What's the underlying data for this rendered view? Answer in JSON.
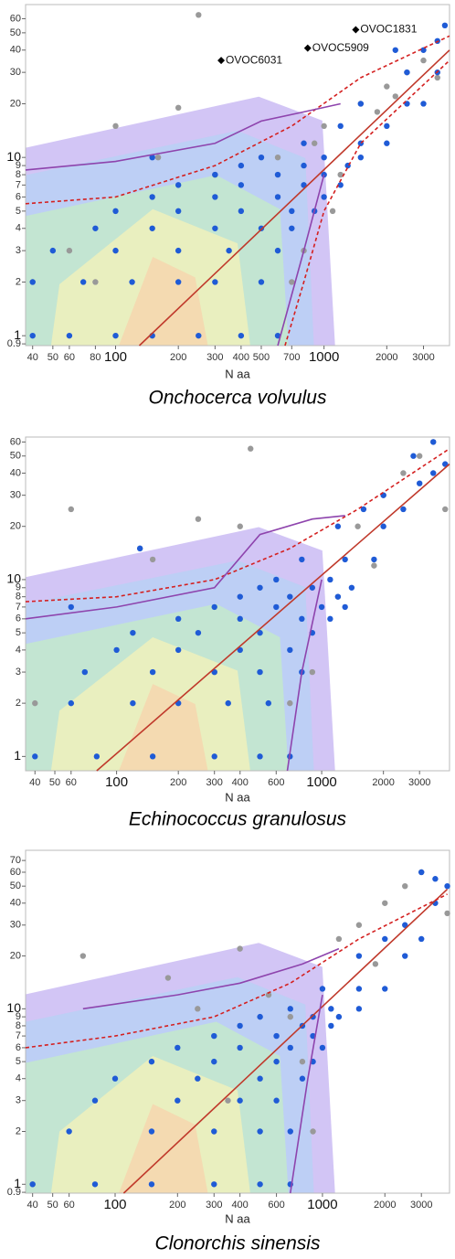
{
  "chart_data": [
    {
      "type": "scatter",
      "title": "Onchocerca volvulus",
      "x_label": "N aa",
      "log_x": true,
      "log_y": true,
      "xlim": [
        37,
        4000
      ],
      "ylim": [
        0.88,
        72
      ],
      "xticks": [
        40,
        50,
        60,
        80,
        100,
        200,
        300,
        400,
        500,
        700,
        1000,
        2000,
        3000
      ],
      "yticks": [
        0.9,
        1,
        2,
        3,
        4,
        5,
        6,
        7,
        8,
        9,
        10,
        20,
        30,
        40,
        50,
        60
      ],
      "series": [
        {
          "kind": "points",
          "color": "#999999",
          "x": [
            250,
            200,
            100,
            60,
            40,
            80,
            700,
            800,
            1100,
            1200,
            1500,
            2000,
            2500,
            3000,
            900,
            1000,
            600,
            1800,
            2200,
            3500,
            160,
            300
          ],
          "y": [
            63,
            19,
            15,
            3,
            2,
            2,
            2,
            3,
            5,
            8,
            20,
            25,
            30,
            35,
            12,
            15,
            10,
            18,
            22,
            28,
            10,
            8
          ]
        },
        {
          "kind": "points",
          "color": "#1f5bd6",
          "x": [
            40,
            60,
            100,
            150,
            250,
            400,
            600,
            40,
            70,
            120,
            200,
            300,
            500,
            50,
            100,
            200,
            350,
            600,
            80,
            150,
            300,
            500,
            700,
            100,
            200,
            400,
            700,
            900,
            150,
            300,
            600,
            1000,
            200,
            400,
            800,
            1200,
            300,
            600,
            1000,
            400,
            800,
            1300,
            500,
            1000,
            1500,
            800,
            1500,
            2000,
            1200,
            2000,
            1500,
            2500,
            3000,
            2500,
            3500,
            3000,
            3800,
            150,
            2200,
            3500
          ],
          "y": [
            1,
            1,
            1,
            1,
            1,
            1,
            1,
            2,
            2,
            2,
            2,
            2,
            2,
            3,
            3,
            3,
            3,
            3,
            4,
            4,
            4,
            4,
            4,
            5,
            5,
            5,
            5,
            5,
            6,
            6,
            6,
            6,
            7,
            7,
            7,
            7,
            8,
            8,
            8,
            9,
            9,
            9,
            10,
            10,
            10,
            12,
            12,
            12,
            15,
            15,
            20,
            20,
            20,
            30,
            30,
            40,
            55,
            10,
            40,
            45
          ]
        },
        {
          "kind": "line",
          "color": "#c0392b",
          "x": [
            130,
            4000
          ],
          "y": [
            0.88,
            40
          ]
        },
        {
          "kind": "dashed",
          "color": "#d42020",
          "x": [
            37,
            100,
            300,
            700,
            1500,
            4000
          ],
          "y": [
            5.5,
            6,
            9,
            15,
            28,
            48
          ]
        },
        {
          "kind": "dashed",
          "color": "#d42020",
          "x": [
            650,
            800,
            1000,
            1500,
            4000
          ],
          "y": [
            0.88,
            2,
            5,
            12,
            35
          ]
        },
        {
          "kind": "line",
          "color": "#8e44ad",
          "x": [
            37,
            100,
            300,
            500,
            800,
            1200
          ],
          "y": [
            8.5,
            9.5,
            12,
            16,
            18,
            20
          ]
        },
        {
          "kind": "line",
          "color": "#8e44ad",
          "x": [
            600,
            800,
            1000
          ],
          "y": [
            0.88,
            3,
            8
          ]
        }
      ],
      "annotations": [
        {
          "text": "OVOC6031",
          "x": 321,
          "y": 35
        },
        {
          "text": "OVOC5909",
          "x": 835,
          "y": 41
        },
        {
          "text": "OVOC1831",
          "x": 1420,
          "y": 52
        }
      ]
    },
    {
      "type": "scatter",
      "title": "Echinococcus granulosus",
      "x_label": "N aa",
      "log_x": true,
      "log_y": true,
      "xlim": [
        36,
        4200
      ],
      "ylim": [
        0.83,
        64
      ],
      "xticks": [
        40,
        50,
        60,
        100,
        200,
        300,
        400,
        600,
        1000,
        2000,
        3000
      ],
      "yticks": [
        1,
        2,
        3,
        4,
        5,
        6,
        7,
        8,
        9,
        10,
        20,
        30,
        40,
        50,
        60
      ],
      "series": [
        {
          "kind": "points",
          "color": "#999999",
          "x": [
            60,
            130,
            150,
            250,
            450,
            400,
            900,
            1500,
            2000,
            2500,
            3000,
            3500,
            1200,
            700,
            40,
            300,
            1800,
            4000
          ],
          "y": [
            25,
            15,
            13,
            22,
            55,
            20,
            3,
            20,
            30,
            40,
            50,
            60,
            8,
            2,
            2,
            3,
            12,
            25
          ]
        },
        {
          "kind": "points",
          "color": "#1f5bd6",
          "x": [
            40,
            80,
            150,
            300,
            500,
            700,
            60,
            120,
            200,
            350,
            550,
            70,
            150,
            300,
            500,
            800,
            100,
            200,
            400,
            700,
            120,
            250,
            500,
            900,
            200,
            400,
            800,
            1100,
            300,
            600,
            1000,
            1300,
            400,
            700,
            1200,
            500,
            900,
            1400,
            600,
            1100,
            800,
            1300,
            1800,
            1200,
            2000,
            1600,
            2500,
            2000,
            3000,
            3500,
            2800,
            4000,
            3500,
            130,
            60
          ],
          "y": [
            1,
            1,
            1,
            1,
            1,
            1,
            2,
            2,
            2,
            2,
            2,
            3,
            3,
            3,
            3,
            3,
            4,
            4,
            4,
            4,
            5,
            5,
            5,
            5,
            6,
            6,
            6,
            6,
            7,
            7,
            7,
            7,
            8,
            8,
            8,
            9,
            9,
            9,
            10,
            10,
            13,
            13,
            13,
            20,
            20,
            25,
            25,
            30,
            35,
            40,
            50,
            45,
            60,
            15,
            7
          ]
        },
        {
          "kind": "line",
          "color": "#c0392b",
          "x": [
            80,
            4200
          ],
          "y": [
            0.83,
            45
          ]
        },
        {
          "kind": "dashed",
          "color": "#d42020",
          "x": [
            36,
            100,
            300,
            700,
            1500,
            4200
          ],
          "y": [
            7.5,
            8,
            10,
            15,
            25,
            55
          ]
        },
        {
          "kind": "line",
          "color": "#8e44ad",
          "x": [
            36,
            100,
            300,
            500,
            900,
            1300
          ],
          "y": [
            6,
            7,
            9,
            18,
            22,
            23
          ]
        },
        {
          "kind": "line",
          "color": "#8e44ad",
          "x": [
            680,
            800,
            1000
          ],
          "y": [
            0.83,
            3,
            10
          ]
        }
      ]
    },
    {
      "type": "scatter",
      "title": "Clonorchis sinensis",
      "x_label": "N aa",
      "log_x": true,
      "log_y": true,
      "xlim": [
        37,
        4100
      ],
      "ylim": [
        0.89,
        80
      ],
      "xticks": [
        40,
        50,
        60,
        100,
        200,
        300,
        400,
        600,
        1000,
        2000,
        3000
      ],
      "yticks": [
        0.9,
        1,
        2,
        3,
        4,
        5,
        6,
        7,
        8,
        9,
        10,
        20,
        30,
        40,
        50,
        60,
        70
      ],
      "series": [
        {
          "kind": "points",
          "color": "#999999",
          "x": [
            70,
            180,
            400,
            250,
            550,
            700,
            800,
            1500,
            2000,
            2500,
            3000,
            4000,
            1200,
            40,
            1800,
            900,
            350
          ],
          "y": [
            20,
            15,
            22,
            10,
            12,
            9,
            5,
            30,
            40,
            50,
            60,
            35,
            25,
            1,
            18,
            2,
            3
          ]
        },
        {
          "kind": "points",
          "color": "#1f5bd6",
          "x": [
            40,
            80,
            150,
            300,
            500,
            700,
            60,
            150,
            300,
            500,
            700,
            80,
            200,
            400,
            600,
            100,
            250,
            500,
            800,
            150,
            300,
            600,
            900,
            200,
            400,
            700,
            1000,
            300,
            600,
            900,
            400,
            800,
            1100,
            500,
            900,
            1200,
            700,
            1100,
            1500,
            1000,
            1500,
            2000,
            1500,
            2500,
            2000,
            3000,
            2500,
            3500,
            4000,
            3000,
            3500
          ],
          "y": [
            1,
            1,
            1,
            1,
            1,
            1,
            2,
            2,
            2,
            2,
            2,
            3,
            3,
            3,
            3,
            4,
            4,
            4,
            4,
            5,
            5,
            5,
            5,
            6,
            6,
            6,
            6,
            7,
            7,
            7,
            8,
            8,
            8,
            9,
            9,
            9,
            10,
            10,
            10,
            13,
            13,
            13,
            20,
            20,
            25,
            25,
            30,
            40,
            50,
            60,
            55
          ]
        },
        {
          "kind": "line",
          "color": "#c0392b",
          "x": [
            110,
            4000
          ],
          "y": [
            0.89,
            48
          ]
        },
        {
          "kind": "dashed",
          "color": "#d42020",
          "x": [
            37,
            100,
            300,
            700,
            1500,
            4000
          ],
          "y": [
            6,
            7,
            9,
            14,
            25,
            45
          ]
        },
        {
          "kind": "line",
          "color": "#8e44ad",
          "x": [
            70,
            200,
            400,
            800,
            1200
          ],
          "y": [
            10,
            12,
            14,
            18,
            22
          ]
        },
        {
          "kind": "line",
          "color": "#8e44ad",
          "x": [
            700,
            850,
            1000
          ],
          "y": [
            0.89,
            4,
            12
          ]
        }
      ]
    }
  ]
}
